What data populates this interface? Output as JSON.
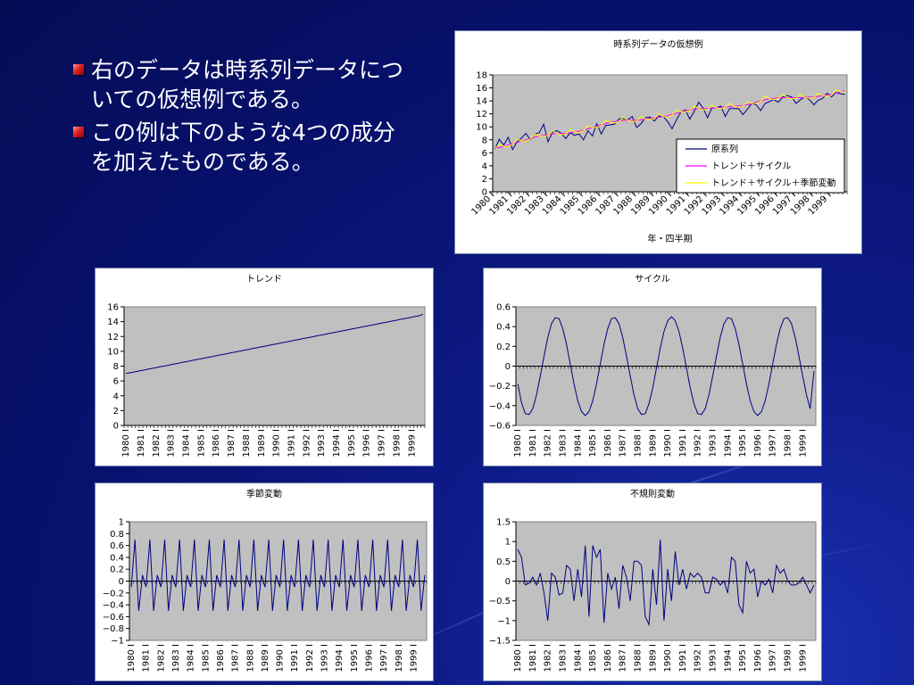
{
  "bullets": [
    "右のデータは時系列データについての仮想例である。",
    "この例は下のような4つの成分を加えたものである。"
  ],
  "colors": {
    "plot_bg": "#c0c0c0",
    "series_navy": "#000080",
    "series_magenta": "#ff00ff",
    "series_yellow": "#ffff00"
  },
  "chart_data": [
    {
      "id": "main",
      "type": "line",
      "title": "時系列データの仮想例",
      "xlabel": "年・四半期",
      "x_ticks": [
        "1980 I",
        "1981 I",
        "1982 I",
        "1983 I",
        "1984 I",
        "1985 I",
        "1986 I",
        "1987 I",
        "1988 I",
        "1989 I",
        "1990 I",
        "1991 I",
        "1992 I",
        "1993 I",
        "1994 I",
        "1995 I",
        "1996 I",
        "1997 I",
        "1998 I",
        "1999 I"
      ],
      "ylim": [
        0,
        18
      ],
      "y_ticks": [
        "0",
        "2",
        "4",
        "6",
        "8",
        "10",
        "12",
        "14",
        "16",
        "18"
      ],
      "legend_position": "bottom-right",
      "series": [
        {
          "name": "原系列",
          "color": "#000080",
          "values": [
            6.6,
            8.1,
            7.2,
            8.4,
            6.5,
            7.7,
            8.3,
            9.0,
            8.0,
            8.9,
            9.1,
            10.4,
            7.7,
            9.2,
            9.4,
            9.0,
            8.2,
            9.1,
            8.7,
            8.9,
            8.0,
            9.4,
            8.6,
            10.5,
            8.9,
            10.2,
            10.3,
            10.4,
            11.2,
            11.3,
            11.1,
            11.6,
            9.9,
            10.5,
            11.4,
            11.5,
            10.9,
            11.7,
            11.6,
            10.8,
            9.7,
            11.1,
            12.3,
            12.6,
            11.2,
            12.4,
            13.8,
            12.9,
            11.4,
            12.9,
            12.9,
            13.2,
            11.6,
            12.8,
            12.8,
            12.8,
            11.9,
            12.7,
            13.6,
            13.4,
            12.5,
            13.6,
            13.9,
            14.2,
            13.8,
            14.6,
            14.8,
            14.6,
            13.6,
            14.2,
            14.6,
            14.2,
            13.4,
            14.1,
            14.4,
            15.2,
            14.6,
            15.3,
            15.1,
            15.0
          ]
        },
        {
          "name": "トレンド＋サイクル",
          "color": "#ff00ff",
          "values": [
            6.8,
            6.8,
            7.0,
            7.2,
            7.4,
            7.6,
            7.8,
            8.0,
            8.2,
            8.4,
            8.6,
            8.7,
            8.8,
            8.9,
            9.0,
            9.0,
            9.0,
            9.1,
            9.2,
            9.3,
            9.5,
            9.7,
            9.9,
            10.1,
            10.3,
            10.5,
            10.7,
            10.8,
            10.9,
            11.0,
            11.0,
            11.0,
            11.0,
            11.1,
            11.2,
            11.3,
            11.4,
            11.5,
            11.6,
            11.7,
            11.9,
            12.1,
            12.3,
            12.5,
            12.6,
            12.7,
            12.8,
            12.8,
            12.8,
            12.9,
            12.9,
            13.0,
            13.1,
            13.1,
            13.2,
            13.2,
            13.3,
            13.4,
            13.6,
            13.8,
            14.0,
            14.2,
            14.3,
            14.4,
            14.5,
            14.5,
            14.5,
            14.5,
            14.5,
            14.5,
            14.5,
            14.6,
            14.6,
            14.7,
            14.8,
            14.9,
            15.0,
            15.2,
            15.4,
            15.6
          ]
        },
        {
          "name": "トレンド＋サイクル＋季節変動",
          "color": "#ffff00",
          "values": [
            6.7,
            7.3,
            7.0,
            7.0,
            7.3,
            8.1,
            7.8,
            7.8,
            8.1,
            8.9,
            8.6,
            8.5,
            8.7,
            9.4,
            9.0,
            8.8,
            8.9,
            9.6,
            9.2,
            9.1,
            9.4,
            10.2,
            9.9,
            9.9,
            10.2,
            11.0,
            10.7,
            10.6,
            10.8,
            11.5,
            11.0,
            10.8,
            10.9,
            11.6,
            11.2,
            11.1,
            11.3,
            12.0,
            11.6,
            11.5,
            11.8,
            12.6,
            12.3,
            12.3,
            12.5,
            13.2,
            12.8,
            12.6,
            12.7,
            13.4,
            12.9,
            12.8,
            13.0,
            13.6,
            13.2,
            13.0,
            13.2,
            13.9,
            13.6,
            13.6,
            13.9,
            14.7,
            14.3,
            14.2,
            14.4,
            15.0,
            14.5,
            14.3,
            14.4,
            15.0,
            14.5,
            14.4,
            14.5,
            15.2,
            14.8,
            14.7,
            14.9,
            15.7,
            15.4,
            15.4
          ]
        }
      ]
    },
    {
      "id": "trend",
      "type": "line",
      "title": "トレンド",
      "x_ticks": [
        "1980 I",
        "1981 I",
        "1982 I",
        "1983 I",
        "1984 I",
        "1985 I",
        "1986 I",
        "1987 I",
        "1988 I",
        "1989 I",
        "1990 I",
        "1991 I",
        "1992 I",
        "1993 I",
        "1994 I",
        "1995 I",
        "1996 I",
        "1997 I",
        "1998 I",
        "1999 I"
      ],
      "ylim": [
        0,
        16
      ],
      "y_ticks": [
        "0",
        "2",
        "4",
        "6",
        "8",
        "10",
        "12",
        "14",
        "16"
      ],
      "series": [
        {
          "name": "",
          "color": "#000080",
          "values": [
            7.0,
            7.1,
            7.2,
            7.3,
            7.4,
            7.5,
            7.6,
            7.7,
            7.8,
            7.9,
            8.0,
            8.1,
            8.2,
            8.3,
            8.4,
            8.5,
            8.6,
            8.7,
            8.8,
            8.9,
            9.0,
            9.1,
            9.2,
            9.3,
            9.4,
            9.5,
            9.6,
            9.7,
            9.8,
            9.9,
            10.0,
            10.1,
            10.2,
            10.3,
            10.4,
            10.5,
            10.6,
            10.7,
            10.8,
            10.9,
            11.0,
            11.1,
            11.2,
            11.3,
            11.4,
            11.5,
            11.6,
            11.7,
            11.8,
            11.9,
            12.0,
            12.1,
            12.2,
            12.3,
            12.4,
            12.5,
            12.6,
            12.7,
            12.8,
            12.9,
            13.0,
            13.1,
            13.2,
            13.3,
            13.4,
            13.5,
            13.6,
            13.7,
            13.8,
            13.9,
            14.0,
            14.1,
            14.2,
            14.3,
            14.4,
            14.5,
            14.6,
            14.7,
            14.8,
            15.0
          ]
        }
      ]
    },
    {
      "id": "cycle",
      "type": "line",
      "title": "サイクル",
      "x_ticks": [
        "1980 I",
        "1981 I",
        "1982 I",
        "1983 I",
        "1984 I",
        "1985 I",
        "1986 I",
        "1987 I",
        "1988 I",
        "1989 I",
        "1990 I",
        "1991 I",
        "1992 I",
        "1993 I",
        "1994 I",
        "1995 I",
        "1996 I",
        "1997 I",
        "1998 I",
        "1999 I"
      ],
      "ylim": [
        -0.6,
        0.6
      ],
      "y_ticks": [
        "−0.6",
        "−0.4",
        "−0.2",
        "0",
        "0.2",
        "0.4",
        "0.6"
      ],
      "series": [
        {
          "name": "",
          "color": "#000080",
          "values": [
            -0.18,
            -0.37,
            -0.48,
            -0.49,
            -0.43,
            -0.29,
            -0.1,
            0.1,
            0.29,
            0.43,
            0.49,
            0.48,
            0.38,
            0.22,
            0.02,
            -0.18,
            -0.35,
            -0.46,
            -0.5,
            -0.46,
            -0.35,
            -0.18,
            0.02,
            0.22,
            0.38,
            0.48,
            0.49,
            0.43,
            0.29,
            0.1,
            -0.1,
            -0.29,
            -0.43,
            -0.49,
            -0.48,
            -0.38,
            -0.22,
            -0.02,
            0.18,
            0.35,
            0.46,
            0.5,
            0.46,
            0.35,
            0.18,
            -0.02,
            -0.22,
            -0.38,
            -0.48,
            -0.49,
            -0.43,
            -0.29,
            -0.1,
            0.1,
            0.29,
            0.43,
            0.49,
            0.48,
            0.38,
            0.22,
            0.02,
            -0.18,
            -0.35,
            -0.46,
            -0.5,
            -0.46,
            -0.35,
            -0.18,
            0.02,
            0.22,
            0.38,
            0.48,
            0.49,
            0.43,
            0.29,
            0.1,
            -0.1,
            -0.29,
            -0.43,
            -0.05
          ]
        }
      ]
    },
    {
      "id": "seasonal",
      "type": "line",
      "title": "季節変動",
      "x_ticks": [
        "1980 I",
        "1981 I",
        "1982 I",
        "1983 I",
        "1984 I",
        "1985 I",
        "1986 I",
        "1987 I",
        "1988 I",
        "1989 I",
        "1990 I",
        "1991 I",
        "1992 I",
        "1993 I",
        "1994 I",
        "1995 I",
        "1996 I",
        "1997 I",
        "1998 I",
        "1999 I"
      ],
      "ylim": [
        -1,
        1
      ],
      "y_ticks": [
        "−1",
        "−0.8",
        "−0.6",
        "−0.4",
        "−0.2",
        "0",
        "0.2",
        "0.4",
        "0.6",
        "0.8",
        "1"
      ],
      "series": [
        {
          "name": "",
          "color": "#000080",
          "values": [
            -0.1,
            0.7,
            -0.5,
            0.1,
            -0.1,
            0.7,
            -0.5,
            0.1,
            -0.1,
            0.7,
            -0.5,
            0.1,
            -0.1,
            0.7,
            -0.5,
            0.1,
            -0.1,
            0.7,
            -0.5,
            0.1,
            -0.1,
            0.7,
            -0.5,
            0.1,
            -0.1,
            0.7,
            -0.5,
            0.1,
            -0.1,
            0.7,
            -0.5,
            0.1,
            -0.1,
            0.7,
            -0.5,
            0.1,
            -0.1,
            0.7,
            -0.5,
            0.1,
            -0.1,
            0.7,
            -0.5,
            0.1,
            -0.1,
            0.7,
            -0.5,
            0.1,
            -0.1,
            0.7,
            -0.5,
            0.1,
            -0.1,
            0.7,
            -0.5,
            0.1,
            -0.1,
            0.7,
            -0.5,
            0.1,
            -0.1,
            0.7,
            -0.5,
            0.1,
            -0.1,
            0.7,
            -0.5,
            0.1,
            -0.1,
            0.7,
            -0.5,
            0.1,
            -0.1,
            0.7,
            -0.5,
            0.1,
            -0.1,
            0.7,
            -0.5,
            0.1
          ]
        }
      ]
    },
    {
      "id": "irregular",
      "type": "line",
      "title": "不規則変動",
      "x_ticks": [
        "1980 I",
        "1981 I",
        "1982 I",
        "1983 I",
        "1984 I",
        "1985 I",
        "1986 I",
        "1987 I",
        "1988 I",
        "1989 I",
        "1990 I",
        "1991 I",
        "1992 I",
        "1993 I",
        "1994 I",
        "1995 I",
        "1996 I",
        "1997 I",
        "1998 I",
        "1999 I"
      ],
      "ylim": [
        -1.5,
        1.5
      ],
      "y_ticks": [
        "−1.5",
        "−1",
        "−0.5",
        "0",
        "0.5",
        "1",
        "1.5"
      ],
      "series": [
        {
          "name": "",
          "color": "#000080",
          "values": [
            0.8,
            0.6,
            -0.1,
            -0.05,
            0.1,
            -0.1,
            0.2,
            -0.3,
            -1.0,
            0.2,
            0.1,
            -0.35,
            -0.3,
            0.4,
            0.3,
            -0.5,
            0.3,
            -0.4,
            0.9,
            -0.9,
            0.9,
            0.6,
            0.8,
            -1.05,
            0.2,
            -0.2,
            0.1,
            -0.7,
            0.4,
            0.1,
            -0.5,
            0.5,
            0.5,
            0.4,
            -0.9,
            -1.1,
            0.3,
            -0.6,
            1.05,
            -1.0,
            0.3,
            -0.5,
            0.75,
            -0.1,
            0.3,
            -0.2,
            0.2,
            0.1,
            0.2,
            0.1,
            -0.3,
            -0.3,
            0.1,
            0.05,
            -0.1,
            0.0,
            -0.3,
            0.6,
            0.5,
            -0.6,
            -0.8,
            0.5,
            0.2,
            0.3,
            -0.4,
            0.0,
            -0.1,
            0.05,
            -0.3,
            0.4,
            0.2,
            0.3,
            0.0,
            -0.1,
            -0.1,
            -0.05,
            0.1,
            -0.1,
            -0.3,
            -0.1
          ]
        }
      ]
    }
  ]
}
